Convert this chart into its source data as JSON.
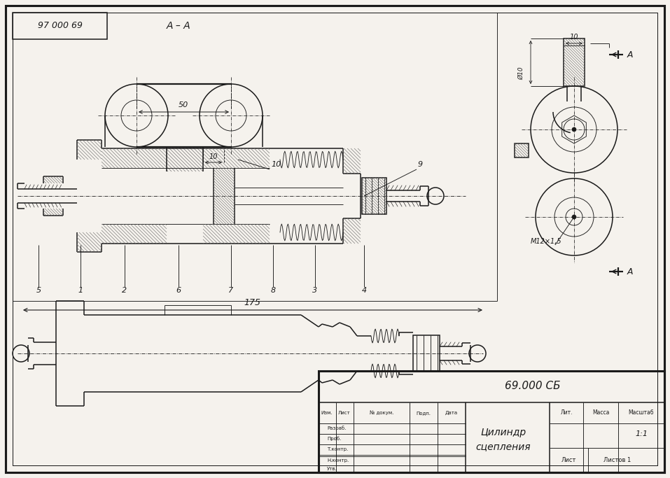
{
  "title_line1": "Цилиндр",
  "title_line2": "сцепления",
  "drawing_number": "69.000 СБ",
  "ref_number": "97 000 69",
  "scale": "1:1",
  "sheet": "Лист",
  "sheets": "Листов 1",
  "lit": "Лит.",
  "massa": "Масса",
  "masshtab": "Масштаб",
  "section_label": "А – А",
  "dim_50": "50",
  "dim_175": "175",
  "dim_10_top": "10",
  "dim_phi10": "Ø10",
  "dim_m12": "М12×1,5",
  "label_A": "А",
  "bg_color": "#f5f2ed",
  "line_color": "#1a1a1a",
  "border_lw": 2.2,
  "thin_lw": 0.65,
  "medium_lw": 1.1,
  "thick_lw": 1.6
}
